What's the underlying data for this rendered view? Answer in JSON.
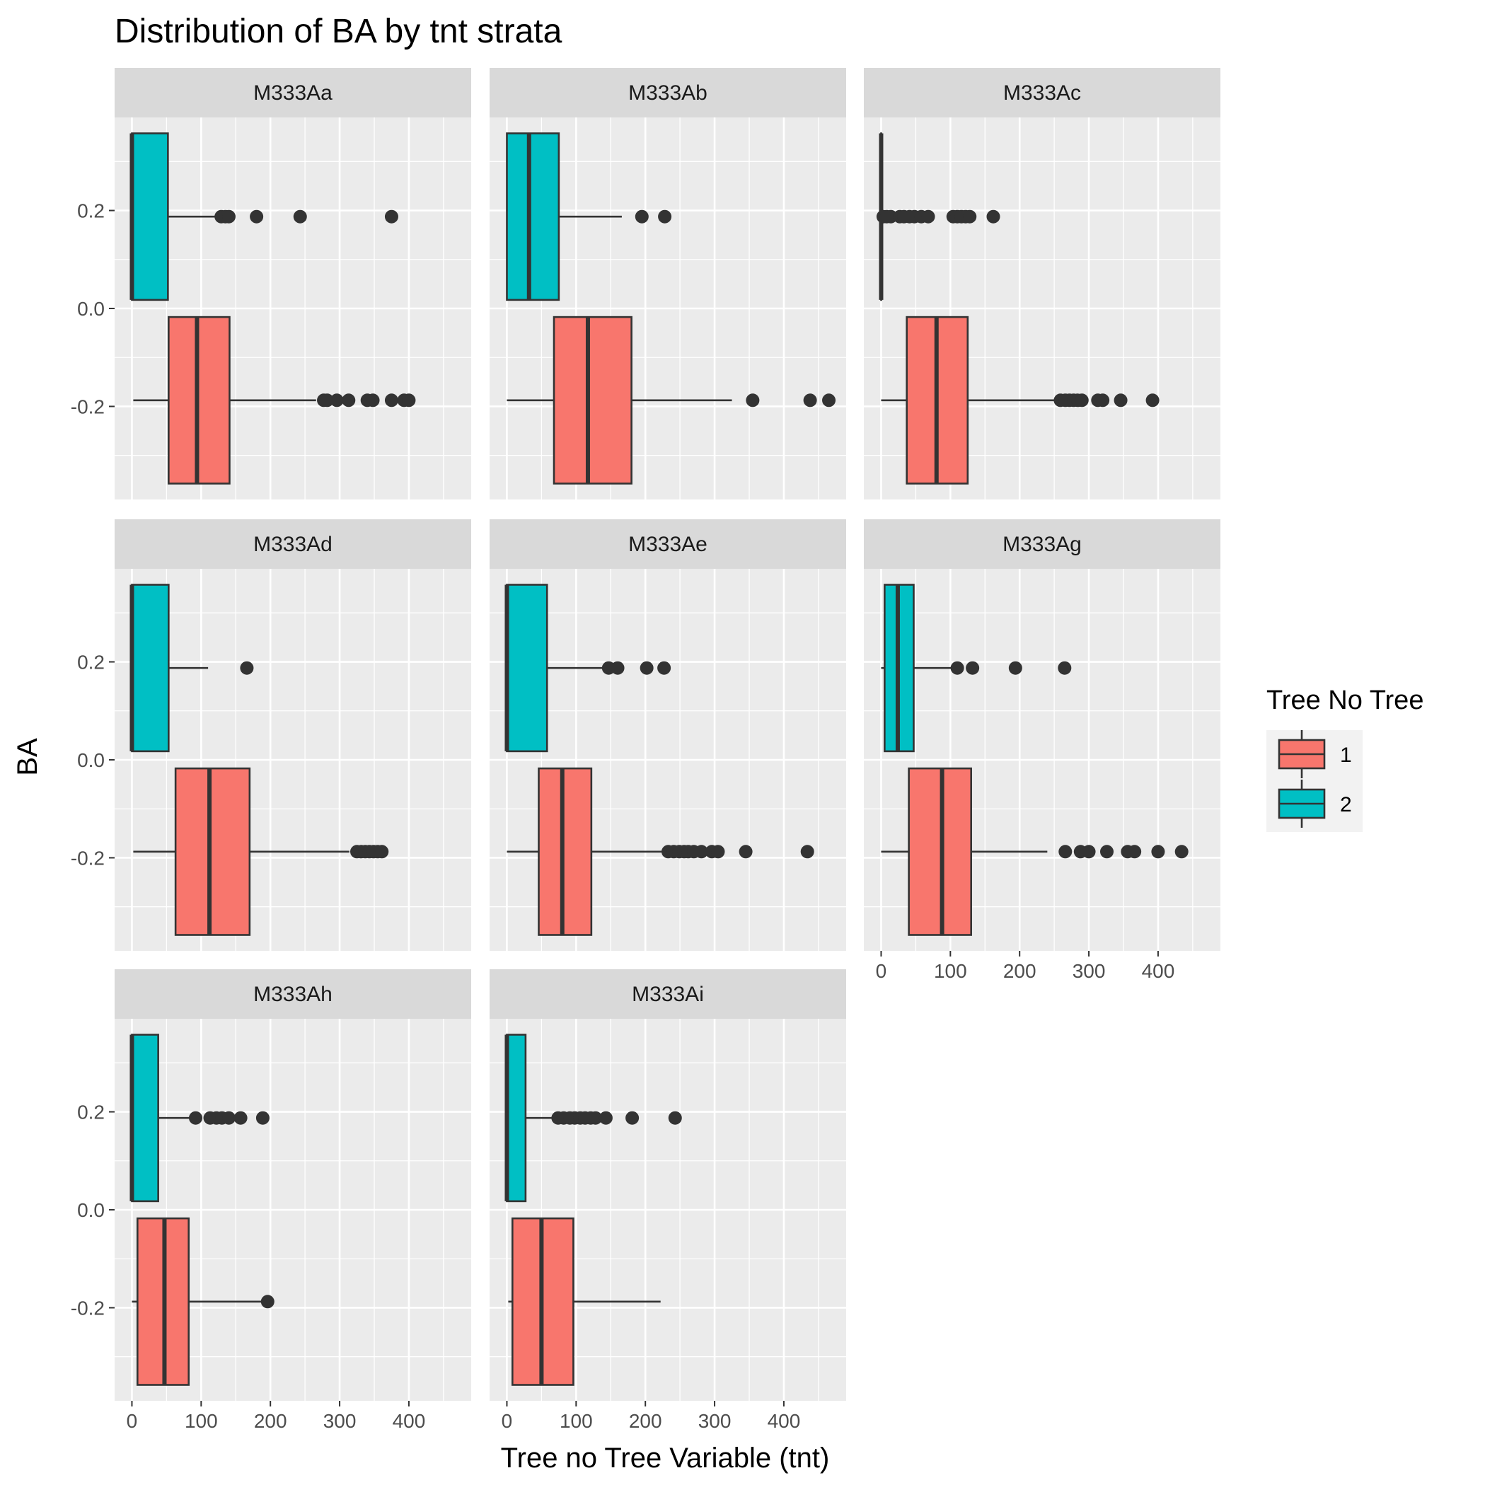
{
  "chart_data": {
    "type": "boxplot",
    "title": "Distribution of BA by tnt strata",
    "xlabel": "Tree no Tree Variable (tnt)",
    "ylabel": "BA",
    "xlim": [
      -25,
      490
    ],
    "ylim": [
      -0.39,
      0.39
    ],
    "x_ticks": [
      0,
      100,
      200,
      300,
      400
    ],
    "y_ticks": [
      -0.2,
      0.0,
      0.2
    ],
    "y_tick_labels": [
      "-0.2",
      "0.0",
      "0.2"
    ],
    "grid": true,
    "legend": {
      "title": "Tree No Tree",
      "position": "right",
      "entries": [
        {
          "label": "1",
          "color": "#F8766D"
        },
        {
          "label": "2",
          "color": "#00BFC4"
        }
      ]
    },
    "colors": {
      "1": "#F8766D",
      "2": "#00BFC4"
    },
    "box_y": {
      "1": -0.1875,
      "2": 0.1875
    },
    "facets": [
      {
        "name": "M333Aa",
        "boxes": [
          {
            "group": "1",
            "whisker_low": 2,
            "q1": 53,
            "median": 94,
            "q3": 141,
            "whisker_high": 266,
            "outliers": [
              277,
              282,
              296,
              313,
              340,
              348,
              375,
              393,
              400
            ]
          },
          {
            "group": "2",
            "whisker_low": 0,
            "q1": 0,
            "median": 0,
            "q3": 52,
            "whisker_high": 125,
            "outliers": [
              129,
              135,
              140,
              180,
              243,
              375
            ]
          }
        ]
      },
      {
        "name": "M333Ab",
        "boxes": [
          {
            "group": "1",
            "whisker_low": 0,
            "q1": 68,
            "median": 117,
            "q3": 180,
            "whisker_high": 325,
            "outliers": [
              355,
              438,
              465
            ]
          },
          {
            "group": "2",
            "whisker_low": 0,
            "q1": 0,
            "median": 32,
            "q3": 75,
            "whisker_high": 166,
            "outliers": [
              195,
              228
            ]
          }
        ]
      },
      {
        "name": "M333Ac",
        "boxes": [
          {
            "group": "1",
            "whisker_low": 0,
            "q1": 37,
            "median": 80,
            "q3": 125,
            "whisker_high": 251,
            "outliers": [
              259,
              266,
              272,
              278,
              284,
              290,
              313,
              320,
              346,
              392
            ]
          },
          {
            "group": "2",
            "whisker_low": 0,
            "q1": 0,
            "median": 0,
            "q3": 0,
            "whisker_high": 0,
            "outliers": [
              3,
              8,
              14,
              27,
              33,
              41,
              48,
              58,
              68,
              104,
              110,
              116,
              122,
              128,
              162
            ]
          }
        ]
      },
      {
        "name": "M333Ad",
        "boxes": [
          {
            "group": "1",
            "whisker_low": 2,
            "q1": 63,
            "median": 112,
            "q3": 170,
            "whisker_high": 314,
            "outliers": [
              325,
              331,
              337,
              343,
              349,
              355,
              361
            ]
          },
          {
            "group": "2",
            "whisker_low": 0,
            "q1": 0,
            "median": 0,
            "q3": 53,
            "whisker_high": 110,
            "outliers": [
              166
            ]
          }
        ]
      },
      {
        "name": "M333Ae",
        "boxes": [
          {
            "group": "1",
            "whisker_low": 0,
            "q1": 46,
            "median": 80,
            "q3": 122,
            "whisker_high": 226,
            "outliers": [
              233,
              241,
              249,
              256,
              262,
              270,
              281,
              296,
              305,
              345,
              434
            ]
          },
          {
            "group": "2",
            "whisker_low": 0,
            "q1": 0,
            "median": 0,
            "q3": 58,
            "whisker_high": 142,
            "outliers": [
              147,
              160,
              202,
              227
            ]
          }
        ]
      },
      {
        "name": "M333Ag",
        "boxes": [
          {
            "group": "1",
            "whisker_low": 0,
            "q1": 40,
            "median": 88,
            "q3": 130,
            "whisker_high": 240,
            "outliers": [
              266,
              288,
              300,
              326,
              356,
              366,
              400,
              434
            ]
          },
          {
            "group": "2",
            "whisker_low": 0,
            "q1": 5,
            "median": 24,
            "q3": 47,
            "whisker_high": 108,
            "outliers": [
              110,
              132,
              194,
              265
            ]
          }
        ]
      },
      {
        "name": "M333Ah",
        "boxes": [
          {
            "group": "1",
            "whisker_low": 0,
            "q1": 8,
            "median": 47,
            "q3": 82,
            "whisker_high": 196,
            "outliers": [
              196
            ]
          },
          {
            "group": "2",
            "whisker_low": 0,
            "q1": 0,
            "median": 0,
            "q3": 38,
            "whisker_high": 88,
            "outliers": [
              92,
              113,
              122,
              130,
              140,
              157,
              189
            ]
          }
        ]
      },
      {
        "name": "M333Ai",
        "boxes": [
          {
            "group": "1",
            "whisker_low": 2,
            "q1": 8,
            "median": 50,
            "q3": 96,
            "whisker_high": 222,
            "outliers": []
          },
          {
            "group": "2",
            "whisker_low": 0,
            "q1": 0,
            "median": 0,
            "q3": 27,
            "whisker_high": 68,
            "outliers": [
              74,
              82,
              91,
              98,
              106,
              113,
              121,
              128,
              143,
              181,
              243
            ]
          }
        ]
      }
    ]
  }
}
